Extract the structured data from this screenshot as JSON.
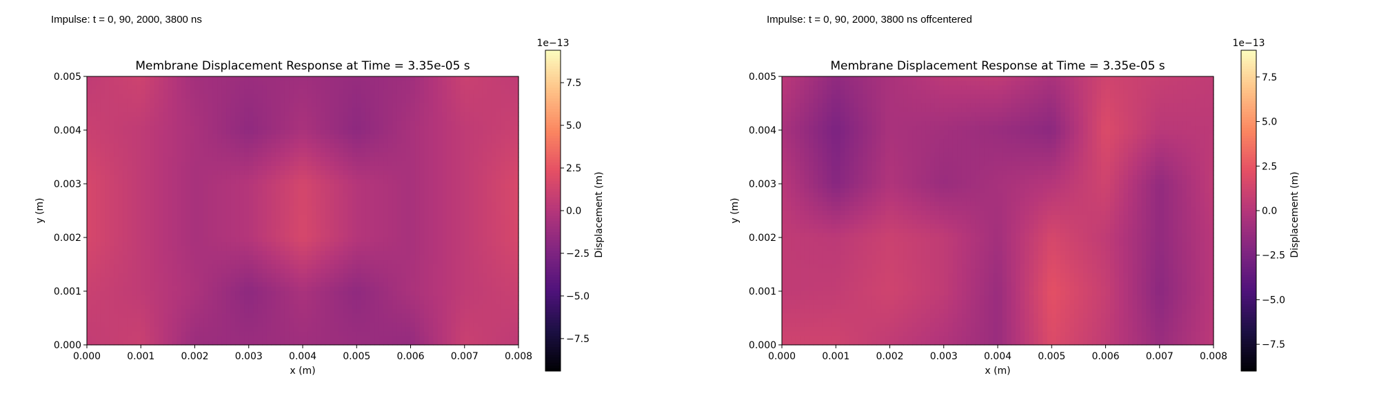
{
  "page": {
    "captions": [
      "Impulse: t = 0, 90, 2000, 3800 ns",
      "Impulse: t = 0, 90, 2000, 3800 ns offcentered"
    ]
  },
  "chart_data": [
    {
      "type": "heatmap",
      "title": "Membrane Displacement Response at Time = 3.35e-05 s",
      "xlabel": "x (m)",
      "ylabel": "y (m)",
      "xlim": [
        0,
        0.008
      ],
      "ylim": [
        0,
        0.005
      ],
      "x_ticks": [
        "0.000",
        "0.001",
        "0.002",
        "0.003",
        "0.004",
        "0.005",
        "0.006",
        "0.007",
        "0.008"
      ],
      "y_ticks": [
        "0.000",
        "0.001",
        "0.002",
        "0.003",
        "0.004",
        "0.005"
      ],
      "colormap": "magma",
      "colorbar": {
        "label": "Displacement (m)",
        "range": [
          -9.4e-13,
          9.4e-13
        ],
        "exponent": "1e−13",
        "ticks": [
          -7.5,
          -5.0,
          -2.5,
          0.0,
          2.5,
          5.0,
          7.5
        ],
        "tick_labels": [
          "−7.5",
          "−5.0",
          "−2.5",
          "0.0",
          "2.5",
          "5.0",
          "7.5"
        ]
      },
      "field_scaled": {
        "unit": "1e-13 m",
        "nx": 9,
        "ny": 6,
        "rows_top_to_bottom": [
          [
            0.5,
            1.2,
            -0.8,
            -1.2,
            -1.0,
            -1.4,
            -1.0,
            1.0,
            0.5
          ],
          [
            1.0,
            0.5,
            -0.5,
            -1.7,
            -0.5,
            -1.8,
            -0.6,
            0.5,
            1.0
          ],
          [
            1.6,
            0.5,
            -0.6,
            0.0,
            1.5,
            0.0,
            -0.6,
            0.5,
            1.7
          ],
          [
            1.6,
            0.5,
            -0.6,
            0.0,
            1.6,
            0.0,
            -0.6,
            0.5,
            1.6
          ],
          [
            1.0,
            0.5,
            -0.4,
            -1.8,
            -0.5,
            -1.7,
            -0.5,
            0.5,
            1.0
          ],
          [
            0.6,
            1.0,
            -1.2,
            -1.2,
            -1.0,
            -1.2,
            -1.5,
            1.0,
            0.4
          ]
        ]
      }
    },
    {
      "type": "heatmap",
      "title": "Membrane Displacement Response at Time = 3.35e-05 s",
      "xlabel": "x (m)",
      "ylabel": "y (m)",
      "xlim": [
        0,
        0.008
      ],
      "ylim": [
        0,
        0.005
      ],
      "x_ticks": [
        "0.000",
        "0.001",
        "0.002",
        "0.003",
        "0.004",
        "0.005",
        "0.006",
        "0.007",
        "0.008"
      ],
      "y_ticks": [
        "0.000",
        "0.001",
        "0.002",
        "0.003",
        "0.004",
        "0.005"
      ],
      "colormap": "magma",
      "colorbar": {
        "label": "Displacement (m)",
        "range": [
          -9e-13,
          9e-13
        ],
        "exponent": "1e−13",
        "ticks": [
          -7.5,
          -5.0,
          -2.5,
          0.0,
          2.5,
          5.0,
          7.5
        ],
        "tick_labels": [
          "−7.5",
          "−5.0",
          "−2.5",
          "0.0",
          "2.5",
          "5.0",
          "7.5"
        ]
      },
      "field_scaled": {
        "unit": "1e-13 m",
        "nx": 9,
        "ny": 6,
        "rows_top_to_bottom": [
          [
            0.3,
            -1.6,
            -0.5,
            0.3,
            0.5,
            -0.5,
            1.2,
            0.8,
            0.5
          ],
          [
            -0.5,
            -2.5,
            -0.5,
            -0.8,
            -1.2,
            -1.8,
            1.8,
            0.2,
            0.3
          ],
          [
            0.2,
            -2.0,
            -0.2,
            -1.2,
            -0.6,
            0.0,
            1.2,
            -1.5,
            0.5
          ],
          [
            0.5,
            0.3,
            1.0,
            0.5,
            -0.8,
            1.5,
            0.5,
            -1.5,
            0.2
          ],
          [
            0.5,
            0.6,
            1.2,
            0.5,
            -1.2,
            2.2,
            0.8,
            -1.8,
            0.2
          ],
          [
            1.2,
            1.2,
            0.5,
            -0.2,
            -1.2,
            1.8,
            0.5,
            -1.2,
            0.3
          ]
        ]
      }
    }
  ]
}
